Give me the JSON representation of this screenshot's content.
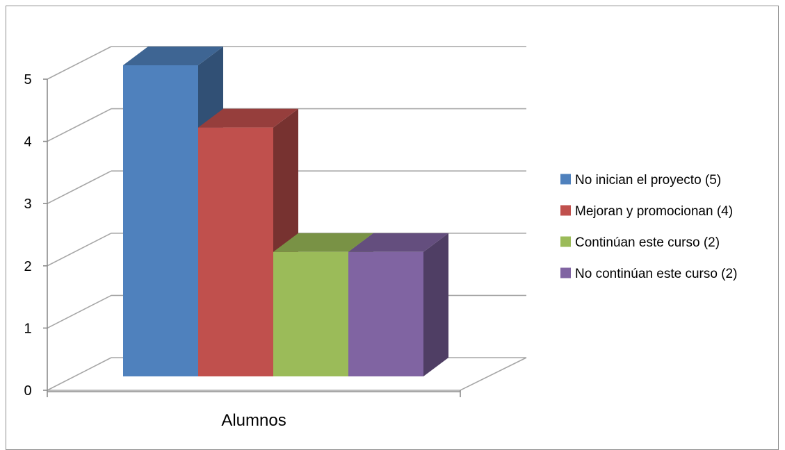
{
  "chart_data": {
    "type": "bar",
    "style": "3d-clustered-column",
    "categories": [
      "Alumnos"
    ],
    "series": [
      {
        "name": "No inician el proyecto (5)",
        "values": [
          5
        ],
        "color": "#4F81BD"
      },
      {
        "name": "Mejoran y promocionan (4)",
        "values": [
          4
        ],
        "color": "#C0504D"
      },
      {
        "name": "Continúan este curso (2)",
        "values": [
          2
        ],
        "color": "#9BBB59"
      },
      {
        "name": "No continúan este curso (2)",
        "values": [
          2
        ],
        "color": "#8064A2"
      }
    ],
    "title": "",
    "xlabel": "",
    "ylabel": "",
    "ylim": [
      0,
      5
    ],
    "yticks": [
      "0",
      "1",
      "2",
      "3",
      "4",
      "5"
    ],
    "grid": true,
    "legend_position": "right",
    "gridline_color": "#A6A6A6"
  }
}
